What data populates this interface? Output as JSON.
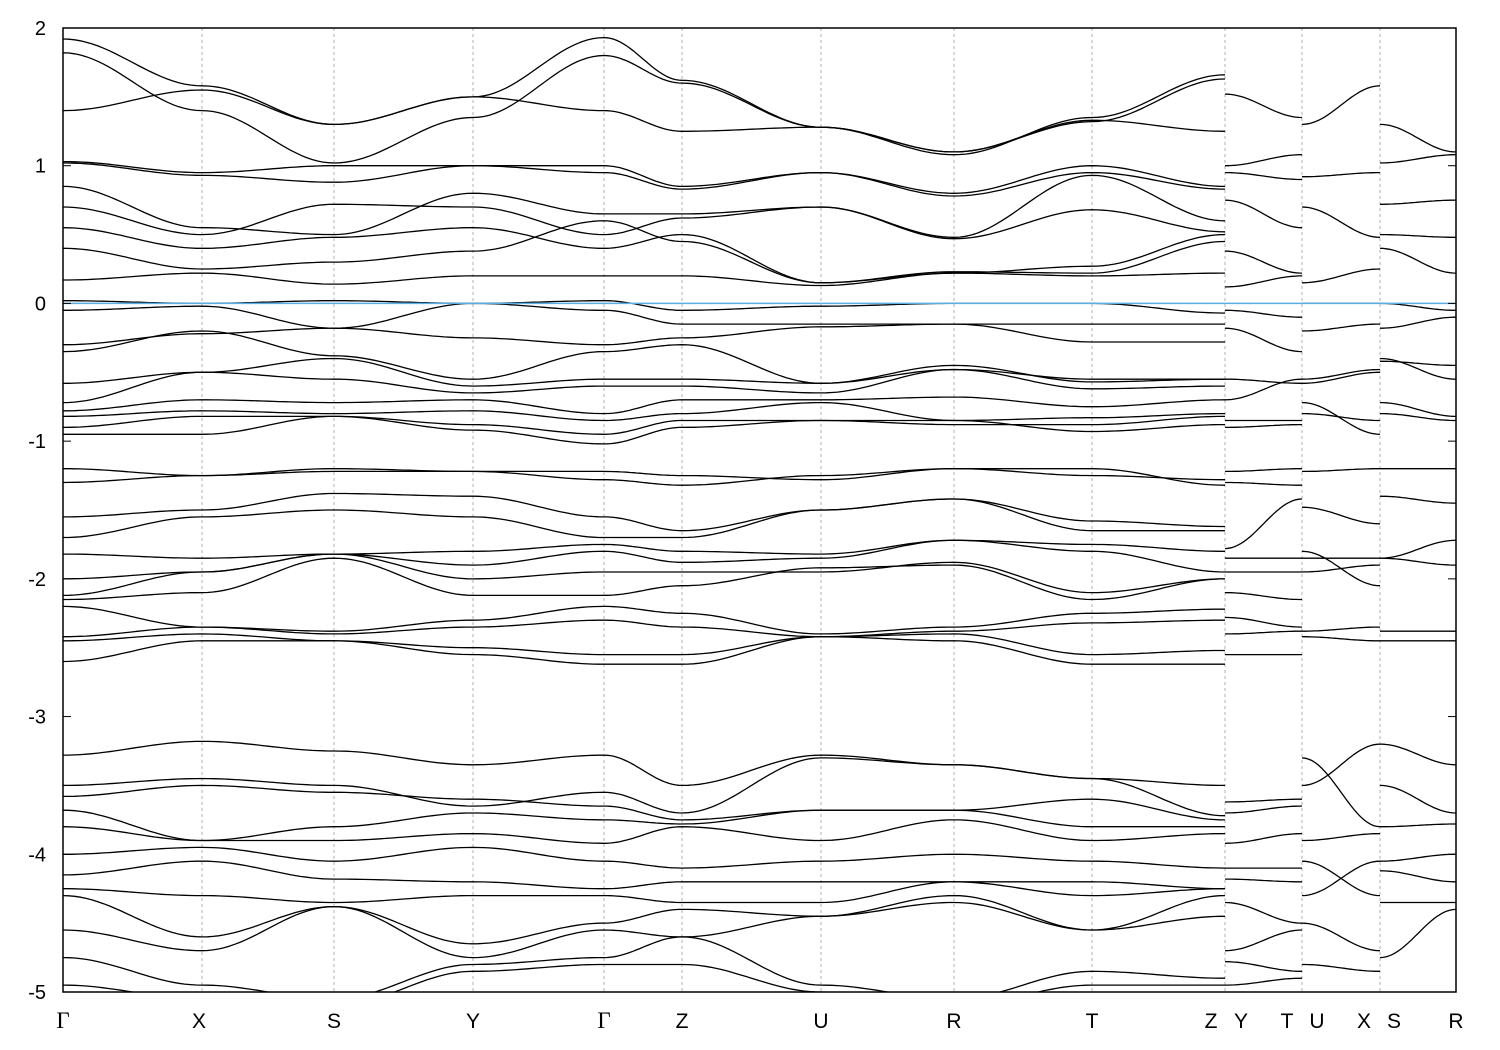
{
  "chart_data": {
    "type": "line",
    "title": "",
    "xlabel": "",
    "ylabel": "",
    "ylim": [
      -5,
      2
    ],
    "yticks": [
      "2",
      "1",
      "0",
      "-1",
      "-2",
      "-3",
      "-4",
      "-5"
    ],
    "ytick_values": [
      2,
      1,
      0,
      -1,
      -2,
      -3,
      -4,
      -5
    ],
    "grid": "vertical dashed lines at high-symmetry points",
    "fermi_level": 0,
    "colors": {
      "bands": "#000000",
      "fermi": "#5aaee0",
      "grid": "#b0b0b0"
    },
    "xtick_labels": [
      "Γ",
      "X",
      "S",
      "Y",
      "Γ",
      "Z",
      "U",
      "R",
      "T",
      "Z",
      "Y",
      "T",
      "U",
      "X",
      "S",
      "R"
    ],
    "segments": [
      {
        "path": [
          "Γ",
          "X",
          "S",
          "Y",
          "Γ",
          "Z",
          "U",
          "R",
          "T",
          "Z"
        ],
        "bands": [
          [
            1.92,
            1.58,
            1.3,
            1.5,
            1.93,
            1.62,
            1.28,
            1.08,
            1.35,
            1.66
          ],
          [
            1.82,
            1.4,
            1.02,
            1.35,
            1.8,
            1.6,
            1.28,
            1.1,
            1.32,
            1.63
          ],
          [
            1.4,
            1.55,
            1.3,
            1.5,
            1.4,
            1.25,
            1.28,
            1.1,
            1.33,
            1.25
          ],
          [
            1.03,
            0.95,
            1.0,
            1.0,
            1.0,
            0.85,
            0.95,
            0.8,
            1.0,
            0.85
          ],
          [
            1.02,
            0.93,
            0.88,
            1.0,
            0.95,
            0.83,
            0.95,
            0.78,
            0.95,
            0.83
          ],
          [
            0.85,
            0.55,
            0.5,
            0.8,
            0.65,
            0.65,
            0.7,
            0.48,
            0.93,
            0.6
          ],
          [
            0.7,
            0.5,
            0.72,
            0.7,
            0.5,
            0.62,
            0.7,
            0.47,
            0.68,
            0.52
          ],
          [
            0.55,
            0.4,
            0.48,
            0.55,
            0.4,
            0.5,
            0.15,
            0.22,
            0.27,
            0.5
          ],
          [
            0.4,
            0.25,
            0.3,
            0.38,
            0.6,
            0.45,
            0.15,
            0.23,
            0.22,
            0.45
          ],
          [
            0.17,
            0.22,
            0.14,
            0.2,
            0.2,
            0.2,
            0.13,
            0.22,
            0.2,
            0.22
          ],
          [
            0.02,
            0.0,
            0.02,
            0.0,
            0.02,
            -0.05,
            -0.02,
            0.0,
            0.0,
            -0.07
          ],
          [
            -0.05,
            -0.02,
            -0.18,
            0.0,
            -0.05,
            -0.15,
            -0.15,
            -0.15,
            -0.15,
            -0.15
          ],
          [
            -0.3,
            -0.22,
            -0.18,
            -0.25,
            -0.3,
            -0.25,
            -0.17,
            -0.15,
            -0.28,
            -0.28
          ],
          [
            -0.35,
            -0.2,
            -0.38,
            -0.55,
            -0.35,
            -0.3,
            -0.58,
            -0.48,
            -0.55,
            -0.55
          ],
          [
            -0.58,
            -0.5,
            -0.4,
            -0.6,
            -0.55,
            -0.55,
            -0.58,
            -0.45,
            -0.57,
            -0.55
          ],
          [
            -0.72,
            -0.5,
            -0.55,
            -0.65,
            -0.6,
            -0.6,
            -0.65,
            -0.48,
            -0.62,
            -0.6
          ],
          [
            -0.78,
            -0.7,
            -0.72,
            -0.7,
            -0.8,
            -0.7,
            -0.7,
            -0.68,
            -0.75,
            -0.7
          ],
          [
            -0.82,
            -0.78,
            -0.8,
            -0.78,
            -0.85,
            -0.8,
            -0.72,
            -0.85,
            -0.83,
            -0.8
          ],
          [
            -0.9,
            -0.82,
            -0.82,
            -0.88,
            -0.95,
            -0.85,
            -0.85,
            -0.88,
            -0.88,
            -0.82
          ],
          [
            -0.95,
            -0.95,
            -0.82,
            -0.92,
            -1.02,
            -0.9,
            -0.85,
            -0.85,
            -0.93,
            -0.88
          ],
          [
            -1.2,
            -1.25,
            -1.2,
            -1.22,
            -1.22,
            -1.25,
            -1.28,
            -1.2,
            -1.2,
            -1.32
          ],
          [
            -1.3,
            -1.25,
            -1.22,
            -1.22,
            -1.28,
            -1.32,
            -1.25,
            -1.2,
            -1.25,
            -1.28
          ],
          [
            -1.55,
            -1.5,
            -1.38,
            -1.4,
            -1.55,
            -1.65,
            -1.5,
            -1.42,
            -1.58,
            -1.62
          ],
          [
            -1.7,
            -1.55,
            -1.5,
            -1.55,
            -1.7,
            -1.7,
            -1.5,
            -1.42,
            -1.65,
            -1.65
          ],
          [
            -1.82,
            -1.85,
            -1.82,
            -1.8,
            -1.75,
            -1.8,
            -1.82,
            -1.72,
            -1.75,
            -1.8
          ],
          [
            -2.0,
            -1.95,
            -1.82,
            -1.9,
            -1.8,
            -1.88,
            -1.85,
            -1.72,
            -1.8,
            -1.95
          ],
          [
            -2.12,
            -1.95,
            -1.82,
            -2.0,
            -1.95,
            -1.95,
            -1.95,
            -1.88,
            -2.1,
            -2.0
          ],
          [
            -2.15,
            -2.1,
            -1.85,
            -2.12,
            -2.12,
            -2.05,
            -1.92,
            -1.9,
            -2.15,
            -2.0
          ],
          [
            -2.2,
            -2.35,
            -2.38,
            -2.3,
            -2.2,
            -2.25,
            -2.4,
            -2.35,
            -2.25,
            -2.22
          ],
          [
            -2.42,
            -2.35,
            -2.4,
            -2.35,
            -2.3,
            -2.35,
            -2.42,
            -2.38,
            -2.32,
            -2.3
          ],
          [
            -2.45,
            -2.4,
            -2.45,
            -2.5,
            -2.55,
            -2.55,
            -2.42,
            -2.4,
            -2.55,
            -2.52
          ],
          [
            -2.6,
            -2.45,
            -2.45,
            -2.55,
            -2.62,
            -2.62,
            -2.42,
            -2.45,
            -2.62,
            -2.62
          ],
          [
            -3.28,
            -3.18,
            -3.25,
            -3.35,
            -3.28,
            -3.5,
            -3.28,
            -3.35,
            -3.45,
            -3.5
          ],
          [
            -3.5,
            -3.45,
            -3.5,
            -3.65,
            -3.55,
            -3.7,
            -3.3,
            -3.35,
            -3.45,
            -3.72
          ],
          [
            -3.58,
            -3.5,
            -3.55,
            -3.6,
            -3.65,
            -3.75,
            -3.68,
            -3.68,
            -3.6,
            -3.75
          ],
          [
            -3.68,
            -3.9,
            -3.8,
            -3.7,
            -3.75,
            -3.78,
            -3.68,
            -3.68,
            -3.8,
            -3.8
          ],
          [
            -3.8,
            -3.9,
            -3.9,
            -3.85,
            -3.92,
            -3.8,
            -3.9,
            -3.75,
            -3.9,
            -3.85
          ],
          [
            -4.0,
            -3.95,
            -4.05,
            -3.95,
            -4.05,
            -4.1,
            -4.05,
            -4.0,
            -4.05,
            -4.1
          ],
          [
            -4.15,
            -4.05,
            -4.18,
            -4.2,
            -4.25,
            -4.2,
            -4.2,
            -4.2,
            -4.2,
            -4.25
          ],
          [
            -4.25,
            -4.3,
            -4.35,
            -4.3,
            -4.3,
            -4.35,
            -4.35,
            -4.2,
            -4.3,
            -4.25
          ],
          [
            -4.3,
            -4.6,
            -4.38,
            -4.65,
            -4.5,
            -4.4,
            -4.45,
            -4.3,
            -4.55,
            -4.3
          ],
          [
            -4.55,
            -4.7,
            -4.38,
            -4.75,
            -4.55,
            -4.6,
            -4.45,
            -4.35,
            -4.55,
            -4.45
          ],
          [
            -4.75,
            -4.95,
            -5.05,
            -4.8,
            -4.75,
            -4.6,
            -4.95,
            -5.05,
            -4.85,
            -4.9
          ],
          [
            -4.95,
            -5.05,
            -5.1,
            -4.85,
            -4.8,
            -4.8,
            -5.0,
            -5.1,
            -4.95,
            -4.95
          ]
        ]
      },
      {
        "path": [
          "Y",
          "T"
        ],
        "bands": [
          [
            1.52,
            1.35
          ],
          [
            1.0,
            1.08
          ],
          [
            0.95,
            0.9
          ],
          [
            0.75,
            0.55
          ],
          [
            0.38,
            0.22
          ],
          [
            0.12,
            0.2
          ],
          [
            -0.05,
            -0.1
          ],
          [
            -0.18,
            -0.35
          ],
          [
            -0.55,
            -0.58
          ],
          [
            -0.7,
            -0.55
          ],
          [
            -0.85,
            -0.85
          ],
          [
            -0.9,
            -0.88
          ],
          [
            -1.22,
            -1.2
          ],
          [
            -1.3,
            -1.32
          ],
          [
            -1.78,
            -1.42
          ],
          [
            -1.85,
            -1.85
          ],
          [
            -1.95,
            -1.95
          ],
          [
            -2.1,
            -2.15
          ],
          [
            -2.28,
            -2.35
          ],
          [
            -2.4,
            -2.38
          ],
          [
            -2.55,
            -2.55
          ],
          [
            -3.62,
            -3.6
          ],
          [
            -3.7,
            -3.65
          ],
          [
            -3.92,
            -3.85
          ],
          [
            -4.1,
            -4.1
          ],
          [
            -4.18,
            -4.2
          ],
          [
            -4.35,
            -4.5
          ],
          [
            -4.7,
            -4.55
          ],
          [
            -4.78,
            -4.85
          ],
          [
            -4.95,
            -4.9
          ]
        ]
      },
      {
        "path": [
          "U",
          "X"
        ],
        "bands": [
          [
            1.3,
            1.58
          ],
          [
            0.92,
            0.95
          ],
          [
            0.7,
            0.48
          ],
          [
            0.15,
            0.25
          ],
          [
            0.0,
            0.0
          ],
          [
            -0.2,
            -0.15
          ],
          [
            -0.55,
            -0.48
          ],
          [
            -0.58,
            -0.5
          ],
          [
            -0.72,
            -0.95
          ],
          [
            -0.8,
            -0.85
          ],
          [
            -1.22,
            -1.2
          ],
          [
            -1.48,
            -1.6
          ],
          [
            -1.8,
            -2.05
          ],
          [
            -1.85,
            -1.85
          ],
          [
            -1.95,
            -1.9
          ],
          [
            -2.38,
            -2.35
          ],
          [
            -2.42,
            -2.45
          ],
          [
            -3.3,
            -3.8
          ],
          [
            -3.5,
            -3.2
          ],
          [
            -3.9,
            -3.85
          ],
          [
            -4.05,
            -4.3
          ],
          [
            -4.3,
            -4.05
          ],
          [
            -4.5,
            -4.7
          ],
          [
            -4.8,
            -4.85
          ]
        ]
      },
      {
        "path": [
          "S",
          "R"
        ],
        "bands": [
          [
            1.3,
            1.1
          ],
          [
            1.02,
            1.08
          ],
          [
            0.72,
            0.75
          ],
          [
            0.5,
            0.48
          ],
          [
            0.4,
            0.22
          ],
          [
            0.0,
            -0.05
          ],
          [
            -0.18,
            -0.1
          ],
          [
            -0.4,
            -0.55
          ],
          [
            -0.42,
            -0.45
          ],
          [
            -0.72,
            -0.82
          ],
          [
            -0.8,
            -0.85
          ],
          [
            -1.2,
            -1.2
          ],
          [
            -1.4,
            -1.45
          ],
          [
            -1.85,
            -1.72
          ],
          [
            -1.85,
            -1.9
          ],
          [
            -2.38,
            -2.38
          ],
          [
            -2.45,
            -2.45
          ],
          [
            -3.2,
            -3.35
          ],
          [
            -3.5,
            -3.7
          ],
          [
            -3.8,
            -3.78
          ],
          [
            -4.05,
            -4.0
          ],
          [
            -4.12,
            -4.2
          ],
          [
            -4.35,
            -4.35
          ],
          [
            -4.75,
            -4.4
          ]
        ]
      }
    ]
  }
}
